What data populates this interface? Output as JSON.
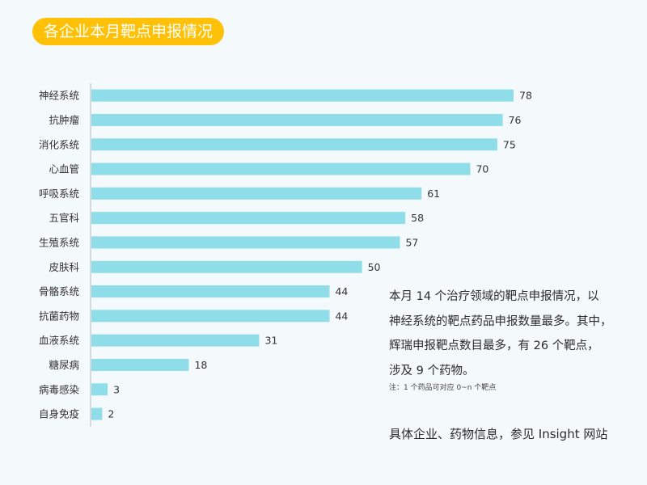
{
  "title": "各企业本月靶点申报情况",
  "chart_data": {
    "type": "bar",
    "orientation": "horizontal",
    "categories": [
      "神经系统",
      "抗肿瘤",
      "消化系统",
      "心血管",
      "呼吸系统",
      "五官科",
      "生殖系统",
      "皮肤科",
      "骨骼系统",
      "抗菌药物",
      "血液系统",
      "糖尿病",
      "病毒感染",
      "自身免疫"
    ],
    "values": [
      78,
      76,
      75,
      70,
      61,
      58,
      57,
      50,
      44,
      44,
      31,
      18,
      3,
      2
    ],
    "bar_color": "#8fdde8",
    "data_labels": true,
    "grid": false,
    "xlim": [
      0,
      80
    ]
  },
  "summary": {
    "lines": [
      "本月 14 个治疗领域的靶点申报情况，以",
      "神经系统的靶点药品申报数量最多。其中，",
      "辉瑞申报靶点数目最多，有 26 个靶点，",
      "涉及 9 个药物。"
    ],
    "footnote": "注：1 个药品可对应 0~n 个靶点",
    "more_info": "具体企业、药物信息，参见 Insight 网站"
  }
}
